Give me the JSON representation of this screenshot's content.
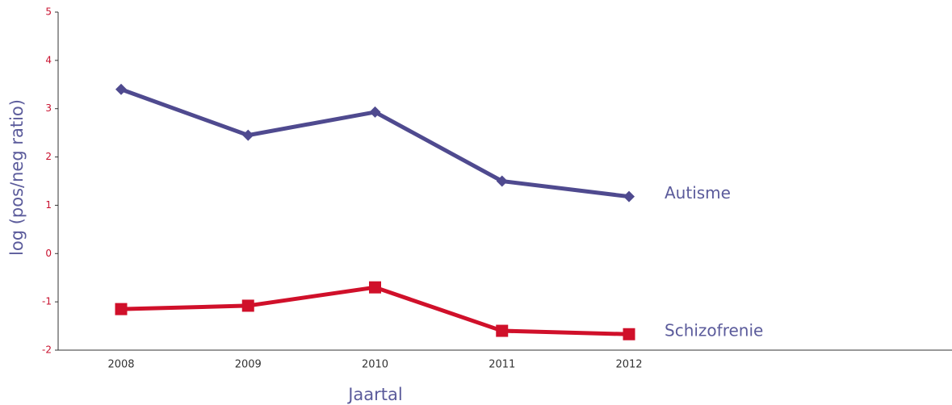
{
  "chart_data": {
    "type": "line",
    "xlabel": "Jaartal",
    "ylabel": "log (pos/neg ratio)",
    "categories": [
      "2008",
      "2009",
      "2010",
      "2011",
      "2012"
    ],
    "series": [
      {
        "name": "Autisme",
        "color": "#4f4a8f",
        "marker": "diamond",
        "values": [
          3.4,
          2.45,
          2.93,
          1.5,
          1.18
        ]
      },
      {
        "name": "Schizofrenie",
        "color": "#d0102a",
        "marker": "square",
        "values": [
          -1.15,
          -1.08,
          -0.7,
          -1.6,
          -1.67
        ]
      }
    ],
    "ylim": [
      -2,
      5
    ],
    "yticks": [
      -2,
      -1,
      0,
      1,
      2,
      3,
      4,
      5
    ],
    "grid": false
  }
}
